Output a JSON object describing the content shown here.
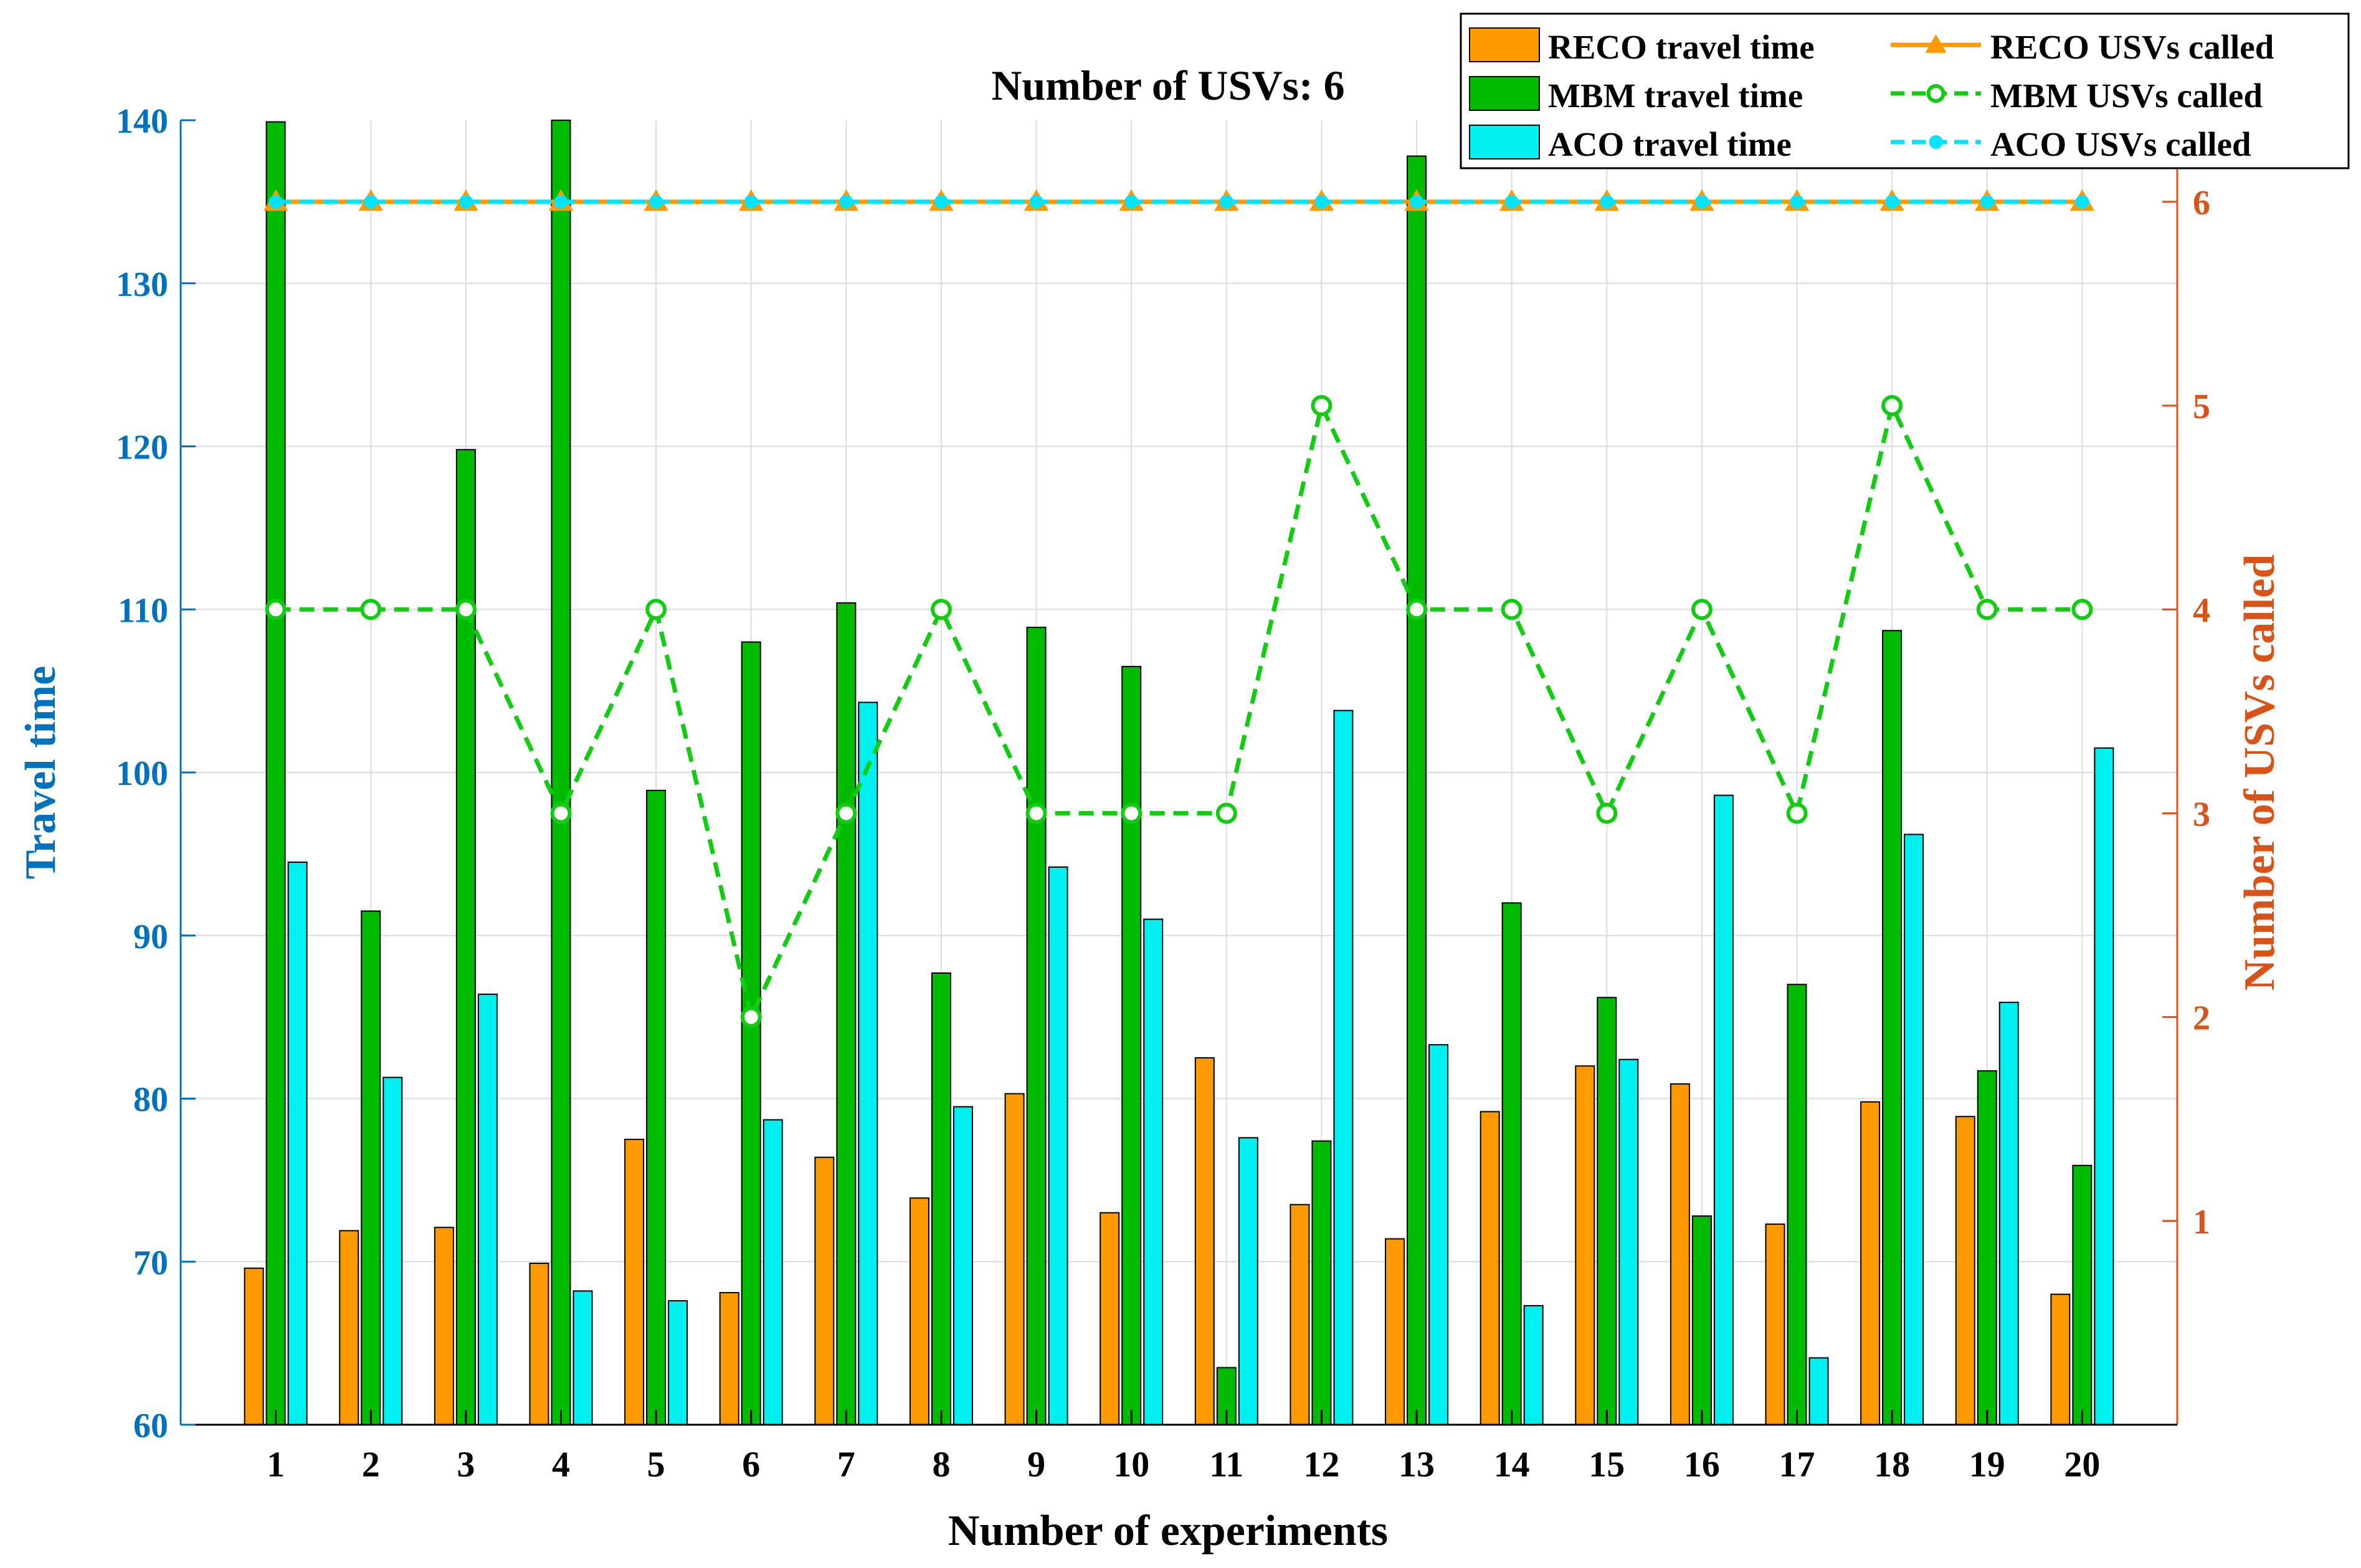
{
  "chart_data": {
    "type": "bar+line",
    "title": "Number of USVs: 6",
    "xlabel": "Number of experiments",
    "ylabel_left": "Travel time",
    "ylabel_right": "Number of USVs called",
    "categories": [
      "1",
      "2",
      "3",
      "4",
      "5",
      "6",
      "7",
      "8",
      "9",
      "10",
      "11",
      "12",
      "13",
      "14",
      "15",
      "16",
      "17",
      "18",
      "19",
      "20"
    ],
    "ylim_left": [
      60,
      140
    ],
    "yticks_left": [
      "60",
      "70",
      "80",
      "90",
      "100",
      "110",
      "120",
      "130",
      "140"
    ],
    "ylim_right": [
      0,
      6.4
    ],
    "yticks_right": [
      "1",
      "2",
      "3",
      "4",
      "5",
      "6"
    ],
    "grid": true,
    "legend_position": "top-right",
    "bar_series": [
      {
        "name": "RECO travel time",
        "color": "#ff9900",
        "values": [
          69.6,
          71.9,
          72.1,
          69.9,
          77.5,
          68.1,
          76.4,
          73.9,
          80.3,
          73.0,
          82.5,
          73.5,
          71.4,
          79.2,
          82.0,
          80.9,
          72.3,
          79.8,
          78.9,
          68.0
        ]
      },
      {
        "name": "MBM travel time",
        "color": "#00bb00",
        "values": [
          139.9,
          91.5,
          119.8,
          140.0,
          98.9,
          108.0,
          110.4,
          87.7,
          108.9,
          106.5,
          63.5,
          77.4,
          137.8,
          92.0,
          86.2,
          72.8,
          87.0,
          108.7,
          81.7,
          75.9
        ]
      },
      {
        "name": "ACO travel time",
        "color": "#00f0f0",
        "values": [
          94.5,
          81.3,
          86.4,
          68.2,
          67.6,
          78.7,
          104.3,
          79.5,
          94.2,
          91.0,
          77.6,
          103.8,
          83.3,
          67.3,
          82.4,
          98.6,
          64.1,
          96.2,
          85.9,
          101.5
        ]
      }
    ],
    "line_series": [
      {
        "name": "RECO USVs called",
        "color": "#ff9900",
        "style": "solid",
        "marker": "triangle",
        "values": [
          6,
          6,
          6,
          6,
          6,
          6,
          6,
          6,
          6,
          6,
          6,
          6,
          6,
          6,
          6,
          6,
          6,
          6,
          6,
          6
        ]
      },
      {
        "name": "MBM USVs called",
        "color": "#11cc11",
        "style": "dashed",
        "marker": "circle",
        "values": [
          4,
          4,
          4,
          3,
          4,
          2,
          3,
          4,
          3,
          3,
          3,
          5,
          4,
          4,
          3,
          4,
          3,
          5,
          4,
          4
        ]
      },
      {
        "name": "ACO USVs called",
        "color": "#00e5ff",
        "style": "dashed",
        "marker": "dot",
        "values": [
          6,
          6,
          6,
          6,
          6,
          6,
          6,
          6,
          6,
          6,
          6,
          6,
          6,
          6,
          6,
          6,
          6,
          6,
          6,
          6
        ]
      }
    ],
    "colors": {
      "left_axis": "#0072bd",
      "right_axis": "#d95319",
      "grid": "#d8dde3"
    }
  }
}
